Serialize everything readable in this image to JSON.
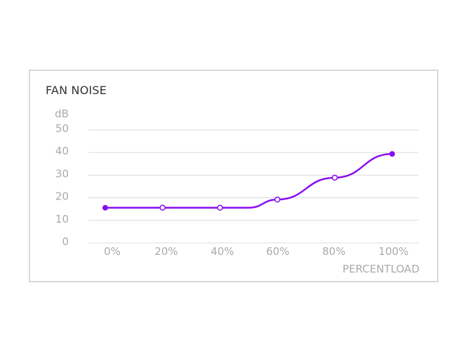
{
  "chart_data": {
    "type": "line",
    "title": "FAN NOISE",
    "ylabel": "dB",
    "xlabel": "PERCENTLOAD",
    "categories": [
      "0%",
      "20%",
      "40%",
      "60%",
      "80%",
      "100%"
    ],
    "y_ticks": [
      50,
      40,
      30,
      20,
      10,
      0
    ],
    "ylim": [
      0,
      50
    ],
    "grid": true,
    "series": [
      {
        "color": "#8a0df0",
        "points": [
          {
            "x": 0,
            "y": 15.6,
            "marker": "filled"
          },
          {
            "x": 20,
            "y": 15.6,
            "marker": "hollow"
          },
          {
            "x": 40,
            "y": 15.6,
            "marker": "hollow"
          },
          {
            "x": 50,
            "y": 15.6,
            "marker": "none"
          },
          {
            "x": 60,
            "y": 19.2,
            "marker": "hollow"
          },
          {
            "x": 80,
            "y": 28.9,
            "marker": "hollow"
          },
          {
            "x": 100,
            "y": 39.4,
            "marker": "filled"
          }
        ]
      }
    ]
  }
}
